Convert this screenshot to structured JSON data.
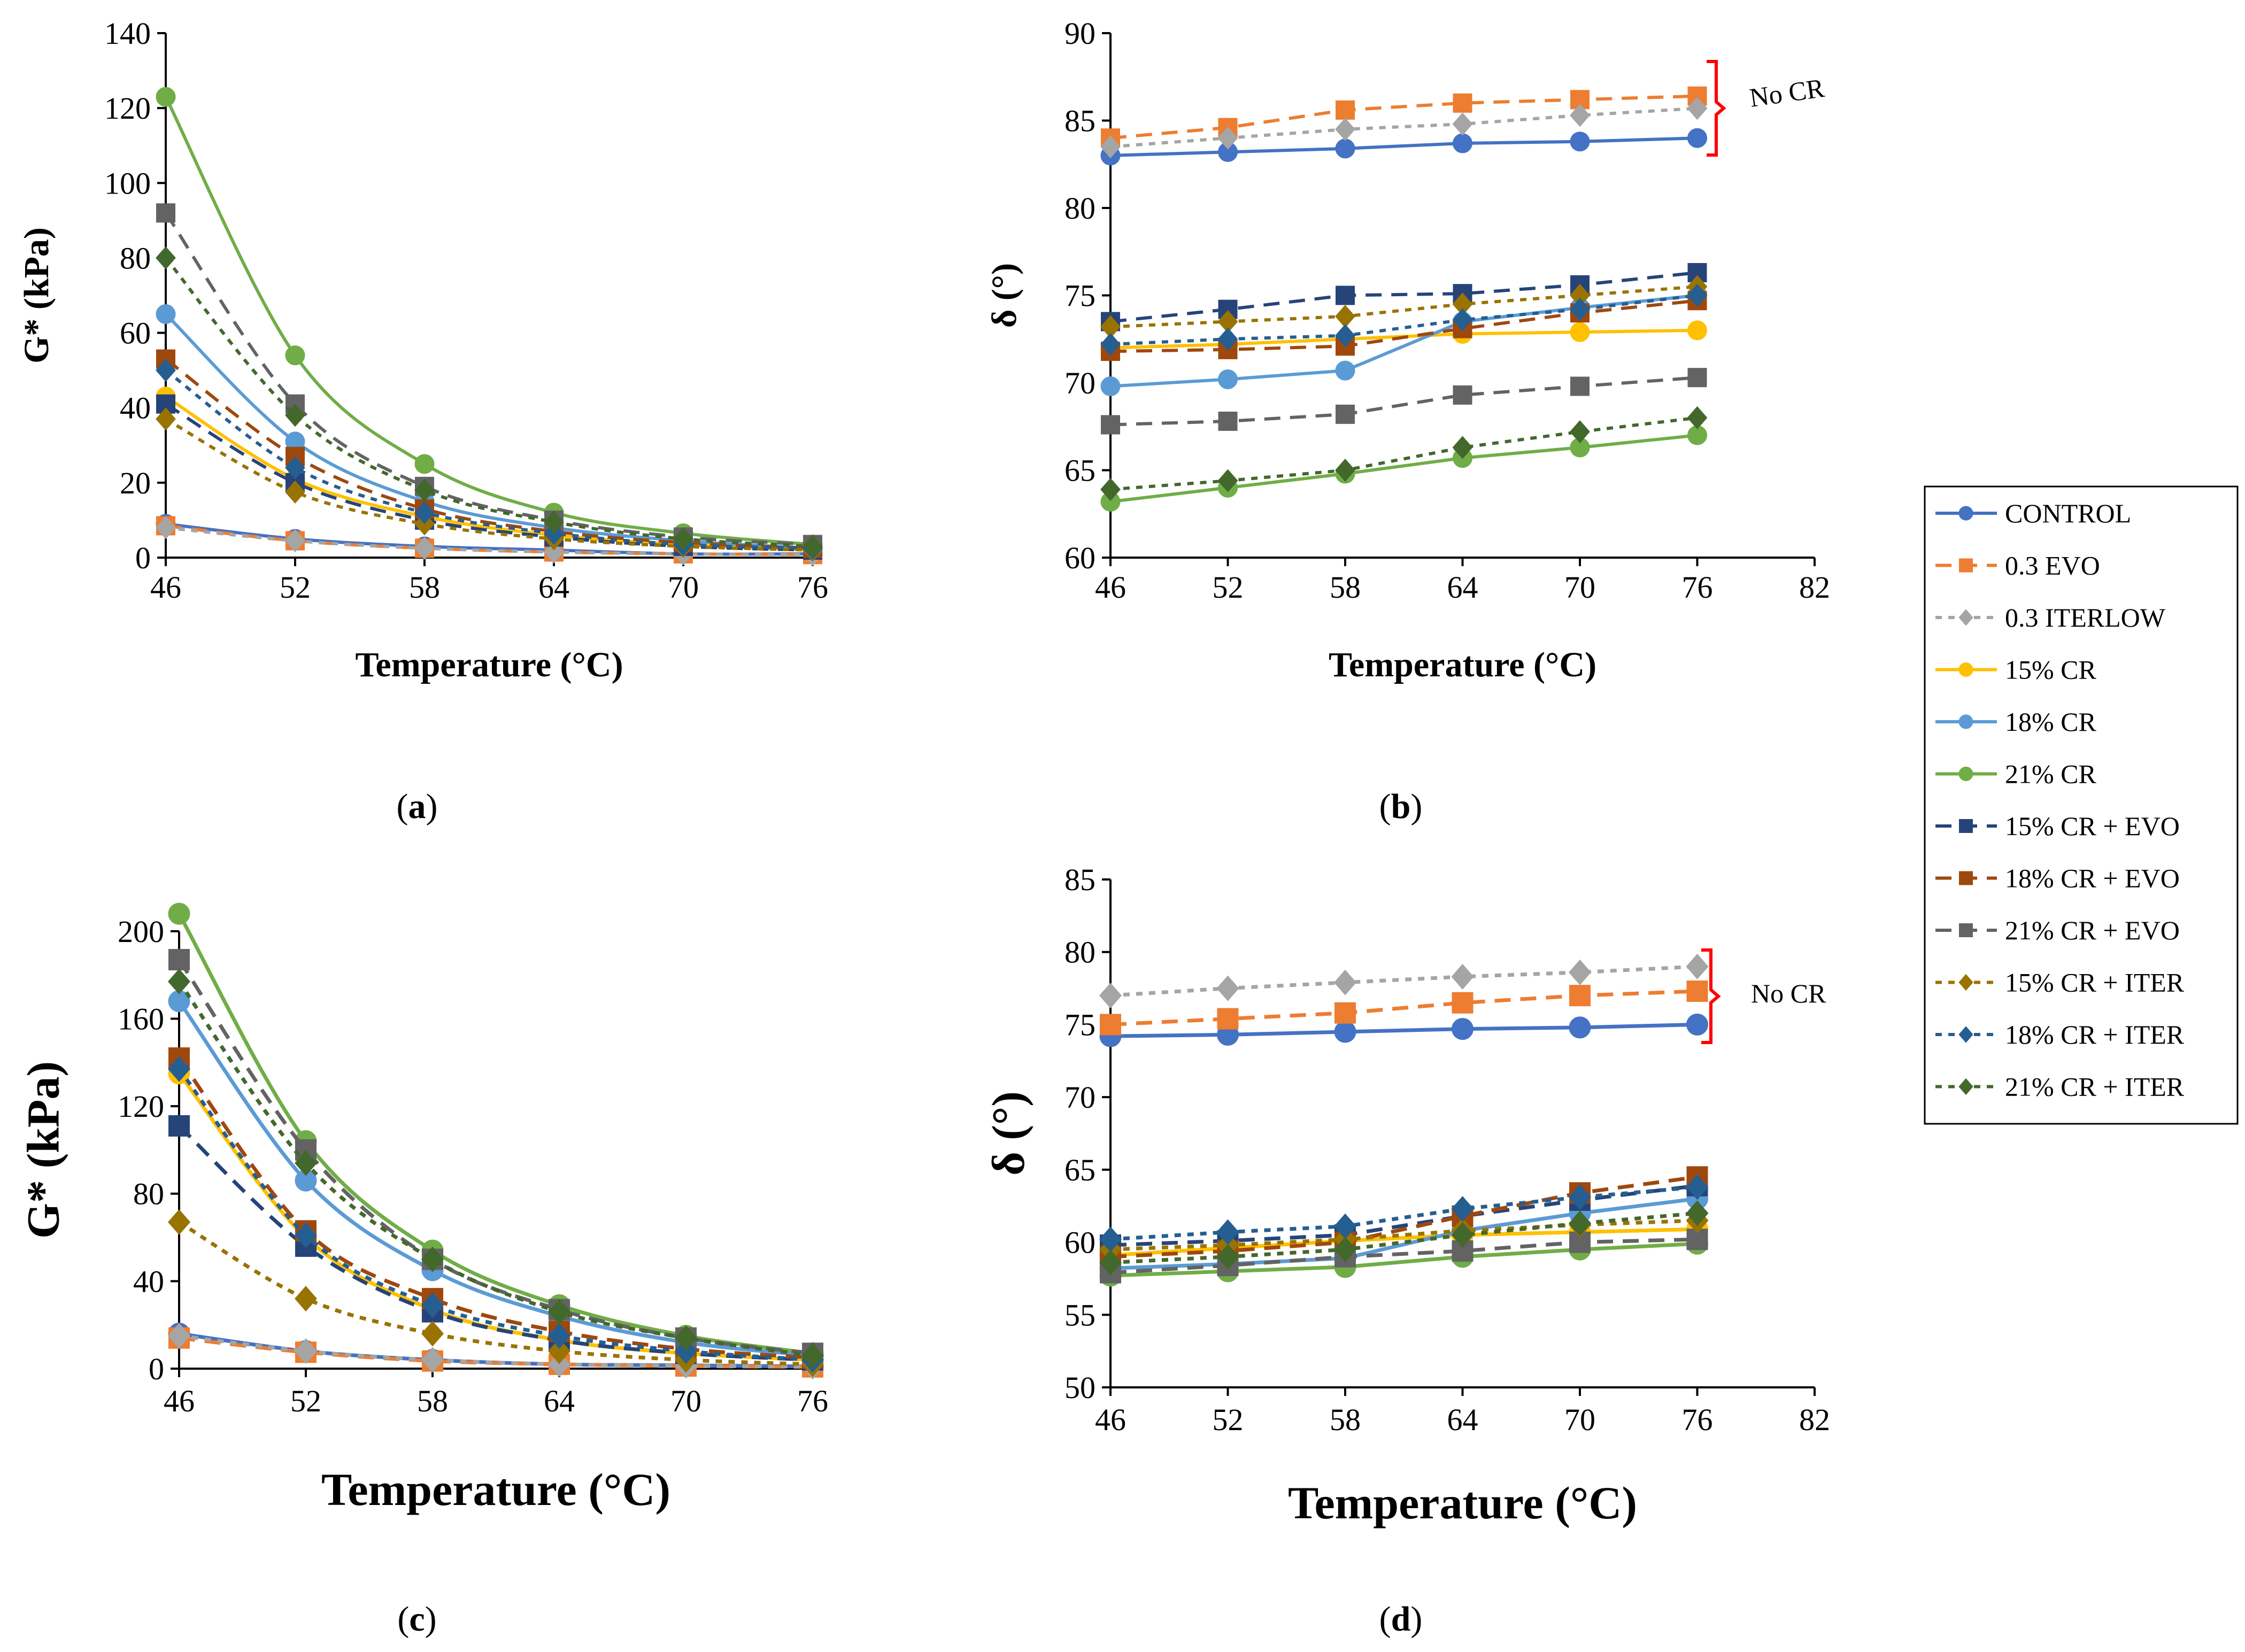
{
  "figure": {
    "legend": [
      {
        "label": "CONTROL",
        "color": "#4472C4",
        "marker": "circle",
        "dash": "solid"
      },
      {
        "label": "0.3 EVO",
        "color": "#ED7D31",
        "marker": "square",
        "dash": "dash"
      },
      {
        "label": "0.3 ITERLOW",
        "color": "#A5A5A5",
        "marker": "diamond",
        "dash": "dot"
      },
      {
        "label": "15% CR",
        "color": "#FFC000",
        "marker": "circle",
        "dash": "solid"
      },
      {
        "label": "18% CR",
        "color": "#5B9BD5",
        "marker": "circle",
        "dash": "solid"
      },
      {
        "label": "21% CR",
        "color": "#70AD47",
        "marker": "circle",
        "dash": "solid"
      },
      {
        "label": "15% CR + EVO",
        "color": "#264478",
        "marker": "square",
        "dash": "dash"
      },
      {
        "label": "18% CR + EVO",
        "color": "#9E480E",
        "marker": "square",
        "dash": "dash"
      },
      {
        "label": "21% CR + EVO",
        "color": "#636363",
        "marker": "square",
        "dash": "dash"
      },
      {
        "label": "15% CR + ITER",
        "color": "#997300",
        "marker": "diamond",
        "dash": "dot"
      },
      {
        "label": "18% CR + ITER",
        "color": "#255E91",
        "marker": "diamond",
        "dash": "dot"
      },
      {
        "label": "21% CR + ITER",
        "color": "#43682B",
        "marker": "diamond",
        "dash": "dot"
      }
    ],
    "bracket_color": "#FF0000"
  },
  "chart_data": [
    {
      "id": "a",
      "type": "line",
      "caption": "(a)",
      "smooth": true,
      "xlabel": "Temperature (°C)",
      "ylabel": "G* (kPa)",
      "x": [
        46,
        52,
        58,
        64,
        70,
        76
      ],
      "xlim": [
        46,
        76
      ],
      "xticks": [
        46,
        52,
        58,
        64,
        70,
        76
      ],
      "ylim": [
        0,
        140
      ],
      "yticks": [
        0,
        20,
        40,
        60,
        80,
        100,
        120,
        140
      ],
      "note": "",
      "series": [
        {
          "name": "CONTROL",
          "values": [
            9,
            5,
            3,
            2,
            1,
            1
          ]
        },
        {
          "name": "0.3 EVO",
          "values": [
            8.5,
            4.5,
            2.5,
            1.5,
            1,
            0.8
          ]
        },
        {
          "name": "0.3 ITERLOW",
          "values": [
            8,
            4.5,
            2.5,
            1.5,
            1,
            0.8
          ]
        },
        {
          "name": "15% CR",
          "values": [
            43,
            21,
            11,
            6,
            3.5,
            2
          ]
        },
        {
          "name": "18% CR",
          "values": [
            65,
            31,
            15,
            8,
            4.5,
            2.5
          ]
        },
        {
          "name": "21% CR",
          "values": [
            123,
            54,
            25,
            12,
            6.5,
            3.5
          ]
        },
        {
          "name": "15% CR + EVO",
          "values": [
            41,
            20,
            10,
            5.5,
            3,
            2
          ]
        },
        {
          "name": "18% CR + EVO",
          "values": [
            53,
            27,
            13,
            7,
            4,
            2.5
          ]
        },
        {
          "name": "21% CR + EVO",
          "values": [
            92,
            41,
            19,
            10,
            5.5,
            3.5
          ]
        },
        {
          "name": "15% CR + ITER",
          "values": [
            37,
            17.5,
            9,
            5,
            3,
            2
          ]
        },
        {
          "name": "18% CR + ITER",
          "values": [
            50,
            24,
            12,
            6.5,
            3.5,
            2.5
          ]
        },
        {
          "name": "21% CR + ITER",
          "values": [
            80,
            38,
            18,
            9.5,
            5,
            3
          ]
        }
      ]
    },
    {
      "id": "b",
      "type": "line",
      "caption": "(b)",
      "smooth": false,
      "xlabel": "Temperature (°C)",
      "ylabel": "δ (°)",
      "x": [
        46,
        52,
        58,
        64,
        70,
        76
      ],
      "xlim": [
        46,
        82
      ],
      "xticks": [
        46,
        52,
        58,
        64,
        70,
        76,
        82
      ],
      "ylim": [
        60,
        90
      ],
      "yticks": [
        60,
        65,
        70,
        75,
        80,
        85,
        90
      ],
      "note": "No CR",
      "series": [
        {
          "name": "CONTROL",
          "values": [
            83,
            83.2,
            83.4,
            83.7,
            83.8,
            84
          ]
        },
        {
          "name": "0.3 EVO",
          "values": [
            84,
            84.6,
            85.6,
            86,
            86.2,
            86.4
          ]
        },
        {
          "name": "0.3 ITERLOW",
          "values": [
            83.5,
            84,
            84.5,
            84.8,
            85.3,
            85.7
          ]
        },
        {
          "name": "15% CR",
          "values": [
            72,
            72.2,
            72.5,
            72.8,
            72.9,
            73
          ]
        },
        {
          "name": "18% CR",
          "values": [
            69.8,
            70.2,
            70.7,
            73.5,
            74.3,
            75
          ]
        },
        {
          "name": "21% CR",
          "values": [
            63.2,
            64,
            64.8,
            65.7,
            66.3,
            67
          ]
        },
        {
          "name": "15% CR + EVO",
          "values": [
            73.5,
            74.2,
            75,
            75.1,
            75.6,
            76.3
          ]
        },
        {
          "name": "18% CR + EVO",
          "values": [
            71.8,
            71.9,
            72.1,
            73.1,
            74,
            74.7
          ]
        },
        {
          "name": "21% CR + EVO",
          "values": [
            67.6,
            67.8,
            68.2,
            69.3,
            69.8,
            70.3
          ]
        },
        {
          "name": "15% CR + ITER",
          "values": [
            73.2,
            73.5,
            73.8,
            74.5,
            75,
            75.5
          ]
        },
        {
          "name": "18% CR + ITER",
          "values": [
            72.2,
            72.5,
            72.7,
            73.6,
            74.2,
            75
          ]
        },
        {
          "name": "21% CR + ITER",
          "values": [
            63.9,
            64.4,
            65,
            66.3,
            67.2,
            68
          ]
        }
      ]
    },
    {
      "id": "c",
      "type": "line",
      "caption": "(c)",
      "smooth": true,
      "xlabel": "Temperature (°C)",
      "ylabel": "G* (kPa)",
      "x": [
        46,
        52,
        58,
        64,
        70,
        76
      ],
      "xlim": [
        46,
        76
      ],
      "xticks": [
        46,
        52,
        58,
        64,
        70,
        76
      ],
      "ylim": [
        0,
        220
      ],
      "yticks": [
        0,
        40,
        80,
        120,
        160,
        200
      ],
      "note": "",
      "series": [
        {
          "name": "CONTROL",
          "values": [
            16,
            8,
            4,
            2,
            1.5,
            1
          ]
        },
        {
          "name": "0.3 EVO",
          "values": [
            14,
            7.5,
            3.5,
            2,
            1.2,
            0.8
          ]
        },
        {
          "name": "0.3 ITERLOW",
          "values": [
            15,
            8,
            4,
            2,
            1.3,
            0.9
          ]
        },
        {
          "name": "15% CR",
          "values": [
            135,
            60,
            27,
            13,
            7,
            4
          ]
        },
        {
          "name": "18% CR",
          "values": [
            168,
            86,
            45,
            24,
            12,
            6
          ]
        },
        {
          "name": "21% CR",
          "values": [
            208,
            104,
            54,
            29,
            15,
            7
          ]
        },
        {
          "name": "15% CR + EVO",
          "values": [
            111,
            56,
            26,
            13,
            7,
            4
          ]
        },
        {
          "name": "18% CR + EVO",
          "values": [
            142,
            63,
            32,
            17,
            9,
            5
          ]
        },
        {
          "name": "21% CR + EVO",
          "values": [
            187,
            100,
            50,
            27,
            14,
            7
          ]
        },
        {
          "name": "15% CR + ITER",
          "values": [
            67,
            32,
            16,
            8,
            4,
            2
          ]
        },
        {
          "name": "18% CR + ITER",
          "values": [
            137,
            61,
            29,
            15,
            8,
            4
          ]
        },
        {
          "name": "21% CR + ITER",
          "values": [
            177,
            94,
            50,
            26,
            14,
            6
          ]
        }
      ]
    },
    {
      "id": "d",
      "type": "line",
      "caption": "(d)",
      "smooth": false,
      "xlabel": "Temperature (°C)",
      "ylabel": "δ (°)",
      "x": [
        46,
        52,
        58,
        64,
        70,
        76
      ],
      "xlim": [
        46,
        82
      ],
      "xticks": [
        46,
        52,
        58,
        64,
        70,
        76,
        82
      ],
      "ylim": [
        50,
        85
      ],
      "yticks": [
        50,
        55,
        60,
        65,
        70,
        75,
        80,
        85
      ],
      "note": "No CR",
      "series": [
        {
          "name": "CONTROL",
          "values": [
            74.2,
            74.3,
            74.5,
            74.7,
            74.8,
            75
          ]
        },
        {
          "name": "0.3 EVO",
          "values": [
            75,
            75.4,
            75.8,
            76.5,
            77,
            77.3
          ]
        },
        {
          "name": "0.3 ITERLOW",
          "values": [
            77,
            77.5,
            77.9,
            78.3,
            78.6,
            79
          ]
        },
        {
          "name": "15% CR",
          "values": [
            59.1,
            59.6,
            60.1,
            60.5,
            60.7,
            60.9
          ]
        },
        {
          "name": "18% CR",
          "values": [
            58.2,
            58.5,
            58.9,
            60.8,
            62,
            63
          ]
        },
        {
          "name": "21% CR",
          "values": [
            57.7,
            58,
            58.3,
            59,
            59.5,
            59.9
          ]
        },
        {
          "name": "15% CR + EVO",
          "values": [
            59.8,
            60.1,
            60.5,
            61.8,
            62.9,
            63.9
          ]
        },
        {
          "name": "18% CR + EVO",
          "values": [
            59,
            59.4,
            60,
            61.8,
            63.4,
            64.5
          ]
        },
        {
          "name": "21% CR + EVO",
          "values": [
            57.9,
            58.4,
            59,
            59.4,
            60,
            60.2
          ]
        },
        {
          "name": "15% CR + ITER",
          "values": [
            59.5,
            59.8,
            60.2,
            60.8,
            61.2,
            61.5
          ]
        },
        {
          "name": "18% CR + ITER",
          "values": [
            60.2,
            60.7,
            61.1,
            62.3,
            63.1,
            63.8
          ]
        },
        {
          "name": "21% CR + ITER",
          "values": [
            58.6,
            59,
            59.5,
            60.5,
            61.3,
            62
          ]
        }
      ]
    }
  ]
}
